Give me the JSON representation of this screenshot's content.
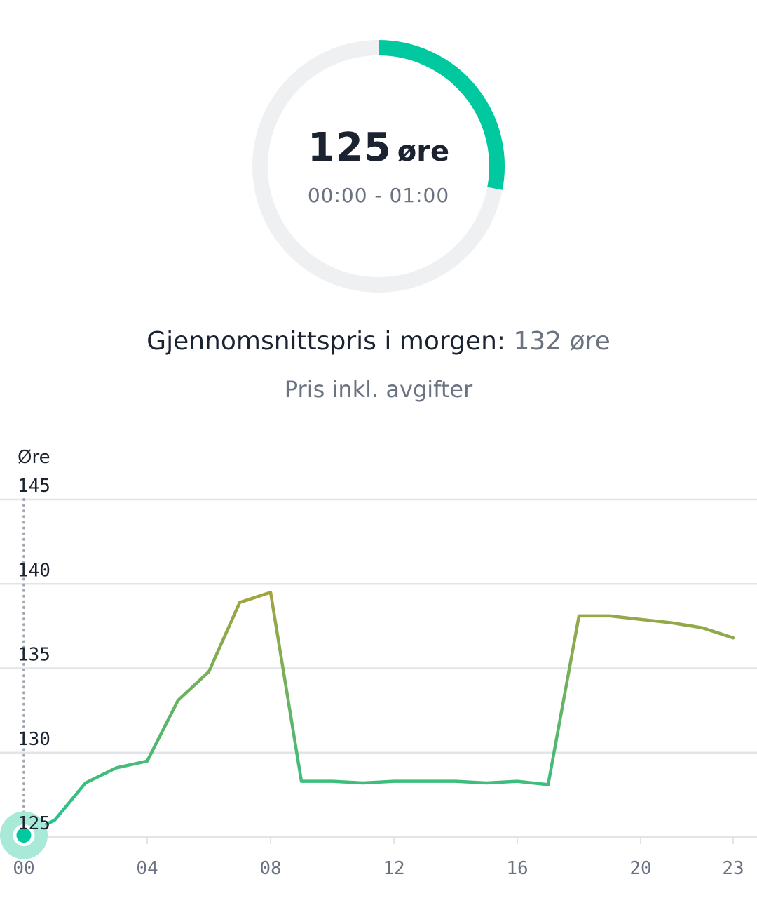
{
  "gauge": {
    "value": "125",
    "unit": "øre",
    "time_range": "00:00 - 01:00",
    "fill_fraction": 0.28,
    "color_fill": "#00c9a0",
    "color_track": "#eff0f2"
  },
  "summary": {
    "avg_label": "Gjennomsnittspris i morgen:",
    "avg_value": "132 øre",
    "subtitle": "Pris inkl. avgifter"
  },
  "chart_data": {
    "type": "line",
    "ylabel": "Øre",
    "ylim": [
      125,
      145
    ],
    "yticks": [
      125,
      130,
      135,
      140,
      145
    ],
    "xlim": [
      0,
      23
    ],
    "xticks": [
      "00",
      "04",
      "08",
      "12",
      "16",
      "20",
      "23"
    ],
    "x": [
      0,
      1,
      2,
      3,
      4,
      5,
      6,
      7,
      8,
      9,
      10,
      11,
      12,
      13,
      14,
      15,
      16,
      17,
      18,
      19,
      20,
      21,
      22,
      23
    ],
    "series": [
      {
        "values": [
          125.1,
          126.0,
          128.2,
          129.1,
          129.5,
          133.1,
          134.8,
          138.9,
          139.5,
          128.3,
          128.3,
          128.2,
          128.3,
          128.3,
          128.3,
          128.2,
          128.3,
          128.1,
          138.1,
          138.1,
          137.9,
          137.7,
          137.4,
          136.8
        ]
      }
    ],
    "selected_index": 0,
    "grid": true,
    "colors": {
      "low": "#20c58f",
      "high": "#a8a33c",
      "grid": "#e2e4e8",
      "marker": "#00c9a0",
      "marker_halo": "#a9e9d7"
    }
  }
}
